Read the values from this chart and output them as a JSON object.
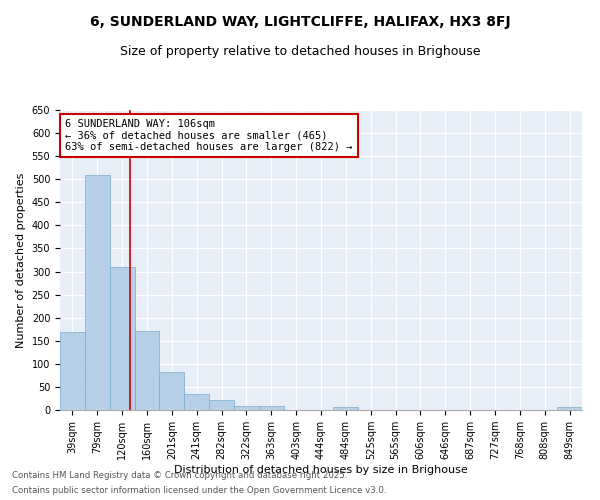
{
  "title": "6, SUNDERLAND WAY, LIGHTCLIFFE, HALIFAX, HX3 8FJ",
  "subtitle": "Size of property relative to detached houses in Brighouse",
  "xlabel": "Distribution of detached houses by size in Brighouse",
  "ylabel": "Number of detached properties",
  "categories": [
    "39sqm",
    "79sqm",
    "120sqm",
    "160sqm",
    "201sqm",
    "241sqm",
    "282sqm",
    "322sqm",
    "363sqm",
    "403sqm",
    "444sqm",
    "484sqm",
    "525sqm",
    "565sqm",
    "606sqm",
    "646sqm",
    "687sqm",
    "727sqm",
    "768sqm",
    "808sqm",
    "849sqm"
  ],
  "values": [
    170,
    510,
    310,
    172,
    82,
    35,
    22,
    8,
    8,
    0,
    0,
    6,
    0,
    0,
    0,
    0,
    0,
    0,
    0,
    0,
    6
  ],
  "bar_color": "#b8cfe8",
  "bar_edge_color": "#7aaad0",
  "bar_edge_width": 0.5,
  "vline_color": "#cc0000",
  "annotation_line1": "6 SUNDERLAND WAY: 106sqm",
  "annotation_line2": "← 36% of detached houses are smaller (465)",
  "annotation_line3": "63% of semi-detached houses are larger (822) →",
  "annotation_box_color": "#cc0000",
  "ylim": [
    0,
    650
  ],
  "yticks": [
    0,
    50,
    100,
    150,
    200,
    250,
    300,
    350,
    400,
    450,
    500,
    550,
    600,
    650
  ],
  "background_color": "#e8eef8",
  "grid_color": "#ffffff",
  "footer_line1": "Contains HM Land Registry data © Crown copyright and database right 2025.",
  "footer_line2": "Contains public sector information licensed under the Open Government Licence v3.0.",
  "title_fontsize": 10,
  "subtitle_fontsize": 9,
  "xlabel_fontsize": 8,
  "ylabel_fontsize": 8,
  "tick_fontsize": 7,
  "annotation_fontsize": 7.5
}
